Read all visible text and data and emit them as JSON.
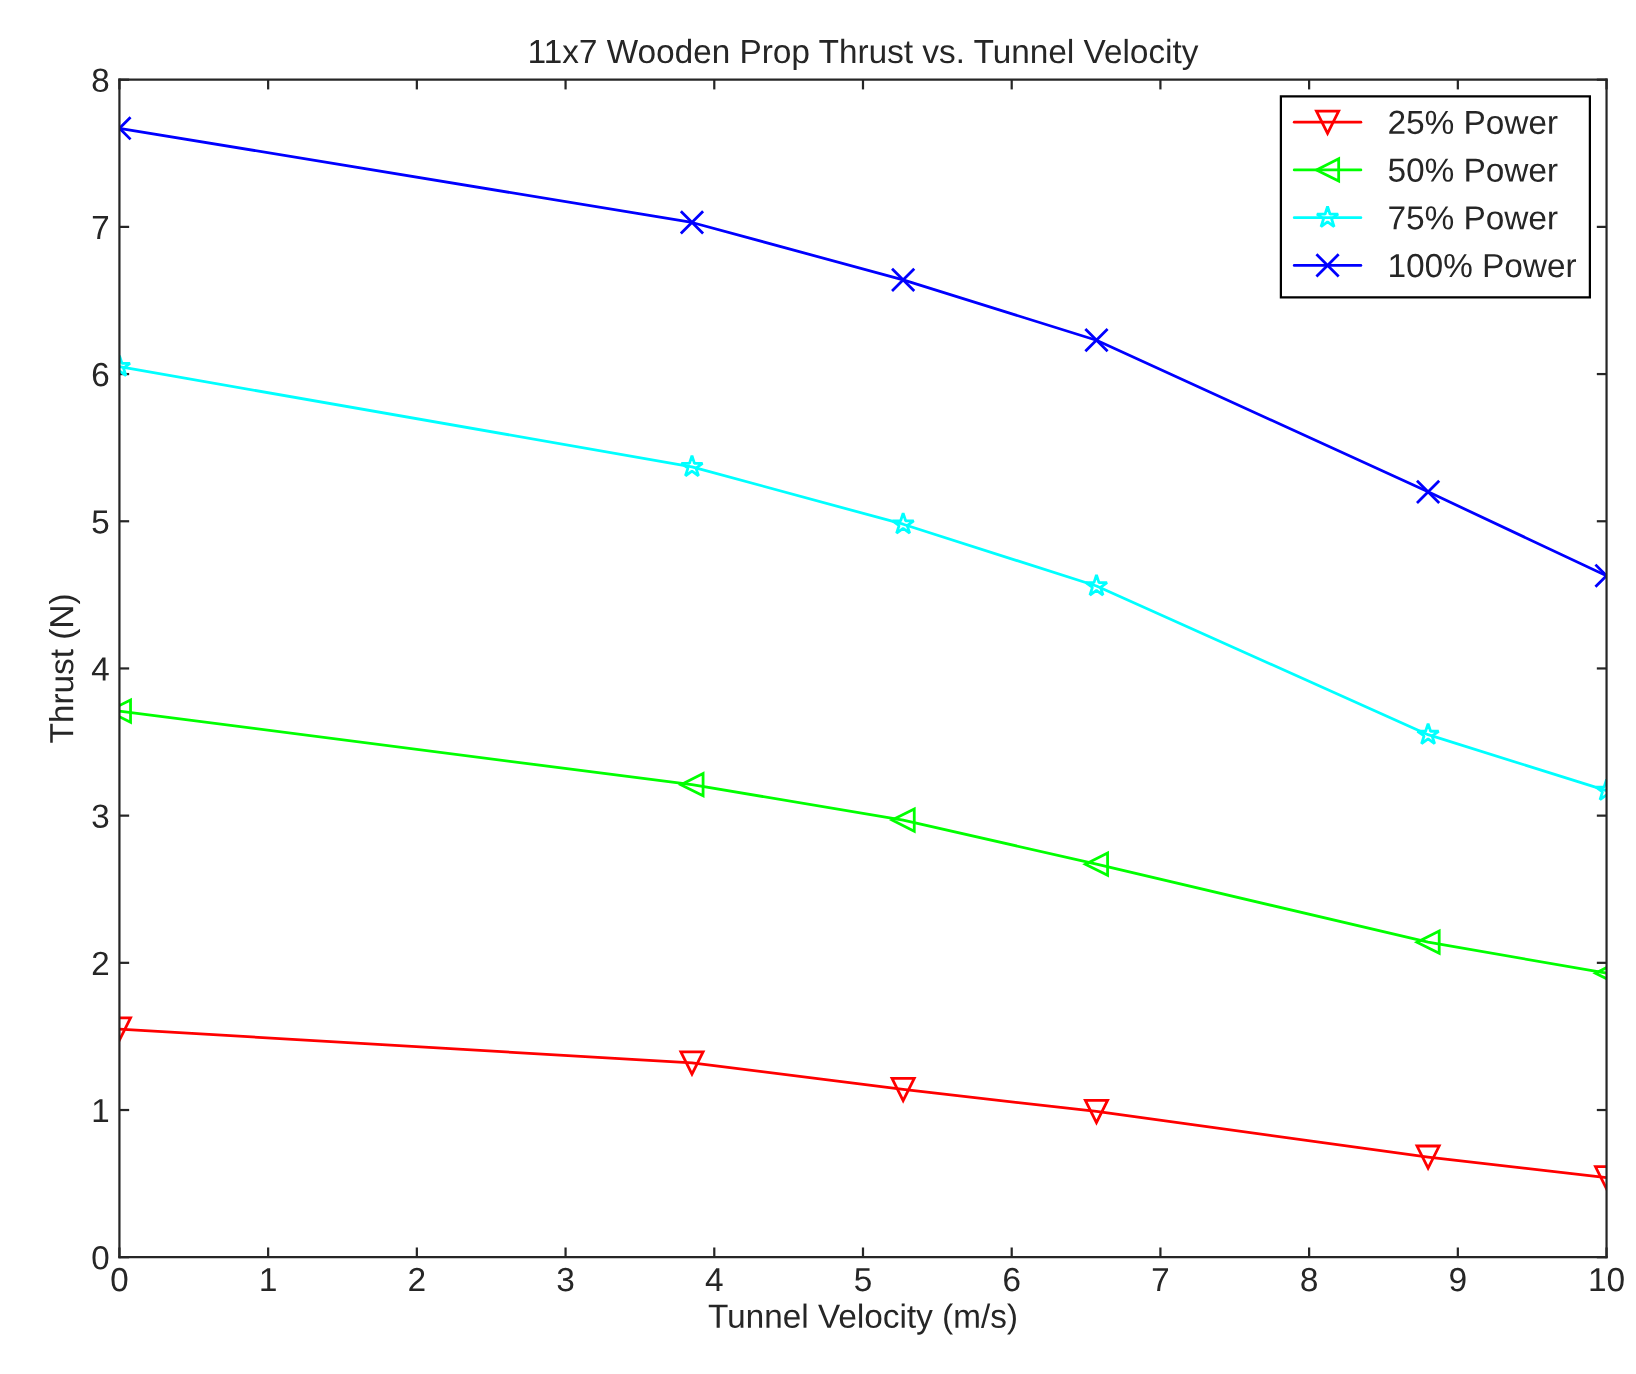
{
  "chart_data": {
    "type": "line",
    "title": "11x7 Wooden Prop Thrust vs. Tunnel Velocity",
    "xlabel": "Tunnel Velocity (m/s)",
    "ylabel": "Thrust (N)",
    "x": [
      0,
      3.85,
      5.27,
      6.57,
      8.8,
      10
    ],
    "series": [
      {
        "name": "25% Power",
        "color": "#ff0000",
        "marker": "triangle-down",
        "values": [
          1.55,
          1.32,
          1.14,
          0.99,
          0.68,
          0.54
        ]
      },
      {
        "name": "50% Power",
        "color": "#00ff00",
        "marker": "triangle-left",
        "values": [
          3.71,
          3.21,
          2.97,
          2.67,
          2.14,
          1.93
        ]
      },
      {
        "name": "75% Power",
        "color": "#00ffff",
        "marker": "star",
        "values": [
          6.05,
          5.37,
          4.98,
          4.56,
          3.55,
          3.17
        ]
      },
      {
        "name": "100% Power",
        "color": "#0000ff",
        "marker": "cross",
        "values": [
          7.67,
          7.03,
          6.64,
          6.23,
          5.2,
          4.63
        ]
      }
    ],
    "xlim": [
      0,
      10
    ],
    "xticks": [
      0,
      1,
      2,
      3,
      4,
      5,
      6,
      7,
      8,
      9,
      10
    ],
    "ylim": [
      0,
      8
    ],
    "yticks": [
      0,
      1,
      2,
      3,
      4,
      5,
      6,
      7,
      8
    ],
    "legend": "top right",
    "grid": false,
    "line_style": "solid"
  }
}
